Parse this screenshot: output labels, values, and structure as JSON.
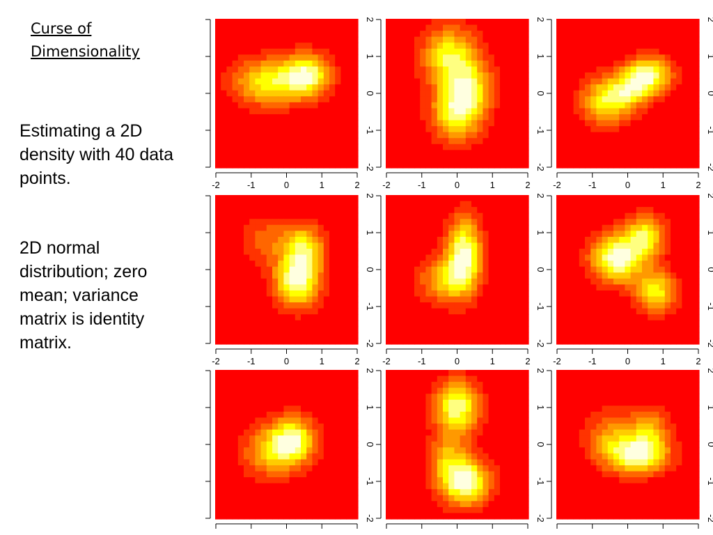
{
  "slide": {
    "title": "Curse of\nDimensionality",
    "paragraph1": "Estimating a 2D density with 40 data points.",
    "paragraph2": "2D normal distribution; zero mean; variance matrix is identity matrix."
  },
  "colors": {
    "palette": [
      "#FF0000",
      "#FF3300",
      "#FF6600",
      "#FF9900",
      "#FFCC00",
      "#FFFF00",
      "#FFFF80",
      "#FFFFE0"
    ]
  },
  "chart_data": {
    "type": "heatmap",
    "layout": "3x3 grid",
    "colormap": "heat",
    "xlim": [
      -2,
      2
    ],
    "ylim": [
      -2,
      2
    ],
    "x_ticks": [
      "-2",
      "-1",
      "0",
      "1",
      "2"
    ],
    "y_ticks": [
      "-2",
      "-1",
      "0",
      "1",
      "2"
    ],
    "panels": [
      {
        "blobs": [
          {
            "x": -0.5,
            "y": 0.3,
            "sx": 0.7,
            "sy": 0.45,
            "w": 0.9
          },
          {
            "x": 0.6,
            "y": 0.5,
            "sx": 0.45,
            "sy": 0.4,
            "w": 1.0
          }
        ]
      },
      {
        "blobs": [
          {
            "x": -0.2,
            "y": 1.0,
            "sx": 0.55,
            "sy": 0.55,
            "w": 0.9
          },
          {
            "x": 0.0,
            "y": -0.5,
            "sx": 0.5,
            "sy": 0.55,
            "w": 1.0
          },
          {
            "x": 0.4,
            "y": 0.2,
            "sx": 0.45,
            "sy": 0.5,
            "w": 0.6
          }
        ]
      },
      {
        "blobs": [
          {
            "x": 0.6,
            "y": 0.5,
            "sx": 0.45,
            "sy": 0.35,
            "w": 1.0
          },
          {
            "x": -0.6,
            "y": -0.2,
            "sx": 0.5,
            "sy": 0.45,
            "w": 0.85
          },
          {
            "x": 0.1,
            "y": 0.1,
            "sx": 0.4,
            "sy": 0.35,
            "w": 0.6
          }
        ]
      },
      {
        "blobs": [
          {
            "x": 0.3,
            "y": -0.3,
            "sx": 0.45,
            "sy": 0.5,
            "w": 1.0
          },
          {
            "x": 0.5,
            "y": 0.6,
            "sx": 0.4,
            "sy": 0.45,
            "w": 0.7
          },
          {
            "x": -0.6,
            "y": 0.8,
            "sx": 0.5,
            "sy": 0.45,
            "w": 0.35
          }
        ]
      },
      {
        "blobs": [
          {
            "x": 0.2,
            "y": 0.4,
            "sx": 0.35,
            "sy": 0.7,
            "w": 1.0
          },
          {
            "x": -0.4,
            "y": -0.3,
            "sx": 0.5,
            "sy": 0.45,
            "w": 0.55
          }
        ]
      },
      {
        "blobs": [
          {
            "x": -0.3,
            "y": 0.3,
            "sx": 0.5,
            "sy": 0.45,
            "w": 1.0
          },
          {
            "x": 0.5,
            "y": 0.9,
            "sx": 0.4,
            "sy": 0.4,
            "w": 0.7
          },
          {
            "x": 0.8,
            "y": -0.6,
            "sx": 0.4,
            "sy": 0.4,
            "w": 0.7
          }
        ]
      },
      {
        "blobs": [
          {
            "x": 0.2,
            "y": 0.1,
            "sx": 0.45,
            "sy": 0.45,
            "w": 1.0
          },
          {
            "x": -0.5,
            "y": -0.2,
            "sx": 0.55,
            "sy": 0.5,
            "w": 0.6
          }
        ]
      },
      {
        "blobs": [
          {
            "x": 0.0,
            "y": 1.0,
            "sx": 0.45,
            "sy": 0.5,
            "w": 0.9
          },
          {
            "x": 0.2,
            "y": -1.0,
            "sx": 0.5,
            "sy": 0.45,
            "w": 1.0
          },
          {
            "x": -0.3,
            "y": -0.3,
            "sx": 0.4,
            "sy": 0.4,
            "w": 0.4
          }
        ]
      },
      {
        "blobs": [
          {
            "x": 0.3,
            "y": -0.3,
            "sx": 0.6,
            "sy": 0.35,
            "w": 1.0
          },
          {
            "x": 0.6,
            "y": 0.4,
            "sx": 0.4,
            "sy": 0.4,
            "w": 0.6
          },
          {
            "x": -0.5,
            "y": 0.2,
            "sx": 0.5,
            "sy": 0.5,
            "w": 0.5
          }
        ]
      }
    ]
  }
}
